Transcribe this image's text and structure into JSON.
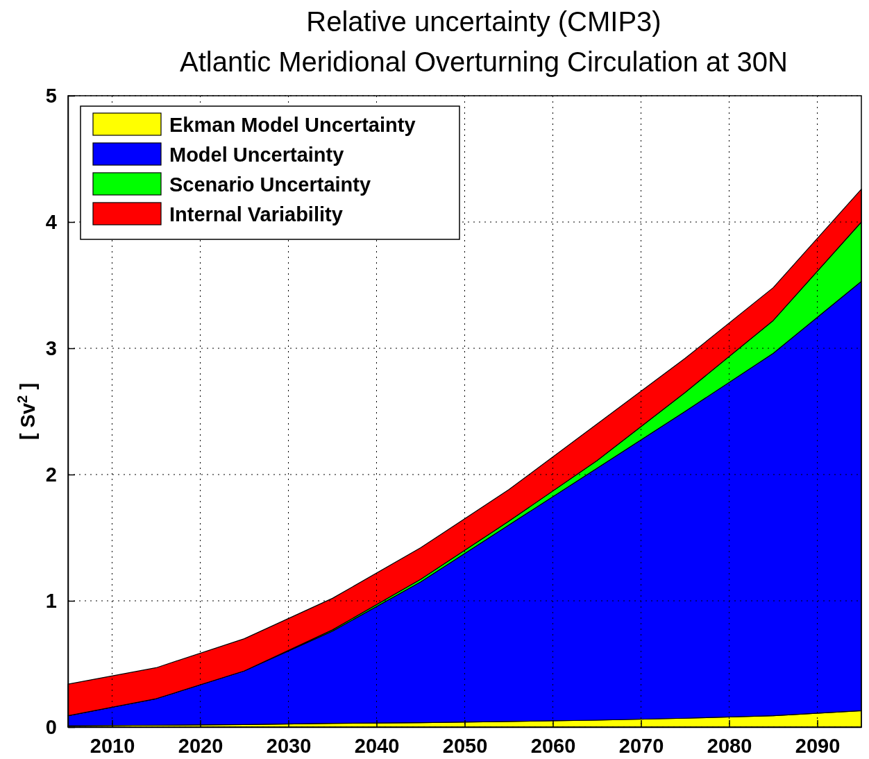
{
  "chart_data": {
    "type": "area",
    "title": "Relative uncertainty (CMIP3)",
    "subtitle": "Atlantic Meridional Overturning Circulation at 30N",
    "ylabel": "[ Sv$^{2}$ ]",
    "x": [
      2005,
      2015,
      2025,
      2035,
      2045,
      2055,
      2065,
      2075,
      2085,
      2095
    ],
    "stacked": true,
    "series": [
      {
        "name": "Ekman Model Uncertainty",
        "color": "#ffff00",
        "values": [
          0.01,
          0.015,
          0.02,
          0.03,
          0.035,
          0.045,
          0.055,
          0.07,
          0.09,
          0.13
        ]
      },
      {
        "name": "Model Uncertainty",
        "color": "#0000ff",
        "values": [
          0.08,
          0.21,
          0.425,
          0.73,
          1.115,
          1.555,
          1.995,
          2.43,
          2.87,
          3.4
        ]
      },
      {
        "name": "Scenario Uncertainty",
        "color": "#00ff00",
        "values": [
          0,
          0,
          0,
          0.01,
          0.02,
          0.03,
          0.06,
          0.15,
          0.26,
          0.47
        ]
      },
      {
        "name": "Internal Variability",
        "color": "#ff0000",
        "values": [
          0.25,
          0.245,
          0.255,
          0.25,
          0.25,
          0.25,
          0.29,
          0.27,
          0.26,
          0.26
        ]
      }
    ],
    "xlim": [
      2005,
      2095
    ],
    "xticks": [
      2010,
      2020,
      2030,
      2040,
      2050,
      2060,
      2070,
      2080,
      2090
    ],
    "ylim": [
      0,
      5
    ],
    "yticks": [
      0,
      1,
      2,
      3,
      4,
      5
    ],
    "grid": true,
    "legend": "top left"
  }
}
